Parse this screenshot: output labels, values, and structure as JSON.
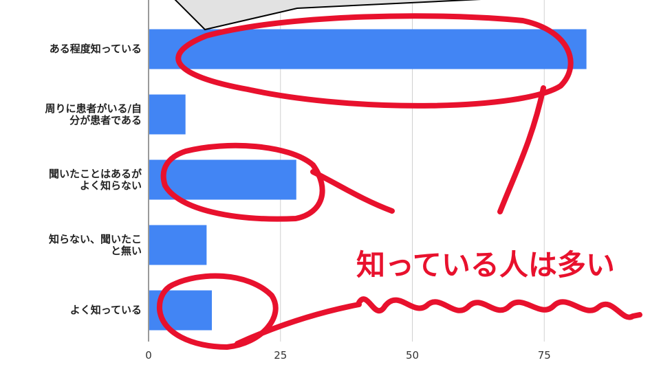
{
  "chart_data": {
    "type": "bar",
    "orientation": "horizontal",
    "categories": [
      "ある程度知っている",
      "周りに患者がいる/自\n分が患者である",
      "聞いたことはあるが\nよく知らない",
      "知らない、聞いたこ\nと無い",
      "よく知っている"
    ],
    "values": [
      83,
      7,
      28,
      11,
      12
    ],
    "xlim": [
      0,
      97
    ],
    "xticks": [
      0,
      25,
      50,
      75
    ],
    "xtick_labels": [
      "0",
      "25",
      "50",
      "75"
    ],
    "grid": true,
    "bar_color": "#4285f4",
    "title": "",
    "xlabel": "",
    "ylabel": ""
  },
  "annotation": {
    "text": "知っている人は多い",
    "color": "#e8112d"
  },
  "ink_color": "#e8112d"
}
